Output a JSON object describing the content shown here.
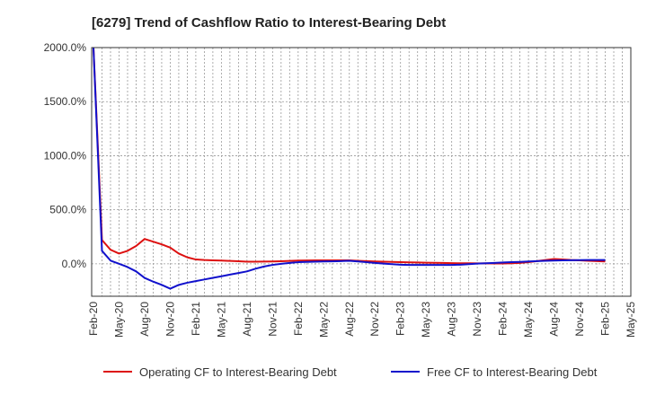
{
  "chart_data": {
    "type": "line",
    "title": "[6279]  Trend of Cashflow Ratio to Interest-Bearing Debt",
    "xlabel": "",
    "ylabel": "",
    "ylim": [
      -300,
      2000
    ],
    "y_ticks": [
      0,
      500,
      1000,
      1500,
      2000
    ],
    "y_tick_labels": [
      "0.0%",
      "500.0%",
      "1000.0%",
      "1500.0%",
      "2000.0%"
    ],
    "x_tick_labels": [
      "Feb-20",
      "May-20",
      "Aug-20",
      "Nov-20",
      "Feb-21",
      "May-21",
      "Aug-21",
      "Nov-21",
      "Feb-22",
      "May-22",
      "Aug-22",
      "Nov-22",
      "Feb-23",
      "May-23",
      "Aug-23",
      "Nov-23",
      "Feb-24",
      "May-24",
      "Aug-24",
      "Nov-24",
      "Feb-25",
      "May-25"
    ],
    "grid": true,
    "legend_position": "bottom",
    "x": [
      "Feb-20",
      "Mar-20",
      "Apr-20",
      "May-20",
      "Jun-20",
      "Jul-20",
      "Aug-20",
      "Sep-20",
      "Oct-20",
      "Nov-20",
      "Dec-20",
      "Jan-21",
      "Feb-21",
      "Mar-21",
      "Apr-21",
      "May-21",
      "Jun-21",
      "Jul-21",
      "Aug-21",
      "Sep-21",
      "Oct-21",
      "Nov-21",
      "Dec-21",
      "Jan-22",
      "Feb-22",
      "Mar-22",
      "Apr-22",
      "May-22",
      "Jun-22",
      "Jul-22",
      "Aug-22",
      "Sep-22",
      "Oct-22",
      "Nov-22",
      "Dec-22",
      "Jan-23",
      "Feb-23",
      "Mar-23",
      "Apr-23",
      "May-23",
      "Jun-23",
      "Jul-23",
      "Aug-23",
      "Sep-23",
      "Oct-23",
      "Nov-23",
      "Dec-23",
      "Jan-24",
      "Feb-24",
      "Mar-24",
      "Apr-24",
      "May-24",
      "Jun-24",
      "Jul-24",
      "Aug-24",
      "Sep-24",
      "Oct-24",
      "Nov-24",
      "Dec-24",
      "Jan-25",
      "Feb-25"
    ],
    "series": [
      {
        "name": "Operating CF to Interest-Bearing Debt",
        "color": "#dd1111",
        "values": [
          2000,
          220,
          130,
          95,
          120,
          165,
          230,
          205,
          180,
          150,
          95,
          60,
          40,
          35,
          32,
          30,
          27,
          24,
          20,
          20,
          21,
          22,
          24,
          27,
          30,
          31,
          32,
          32,
          32,
          32,
          32,
          28,
          25,
          22,
          20,
          18,
          15,
          13,
          12,
          10,
          9,
          8,
          6,
          5,
          5,
          4,
          4,
          3,
          3,
          5,
          8,
          15,
          25,
          35,
          45,
          40,
          35,
          32,
          28,
          25,
          22
        ]
      },
      {
        "name": "Free CF to Interest-Bearing Debt",
        "color": "#1111cc",
        "values": [
          2000,
          120,
          30,
          0,
          -30,
          -70,
          -130,
          -165,
          -195,
          -230,
          -195,
          -175,
          -160,
          -145,
          -130,
          -115,
          -100,
          -85,
          -70,
          -45,
          -25,
          -10,
          0,
          8,
          15,
          18,
          20,
          22,
          23,
          25,
          28,
          22,
          15,
          8,
          2,
          -3,
          -8,
          -10,
          -10,
          -10,
          -10,
          -10,
          -10,
          -8,
          -3,
          2,
          5,
          8,
          12,
          15,
          18,
          22,
          25,
          28,
          30,
          32,
          33,
          34,
          35,
          35,
          35
        ]
      }
    ]
  }
}
